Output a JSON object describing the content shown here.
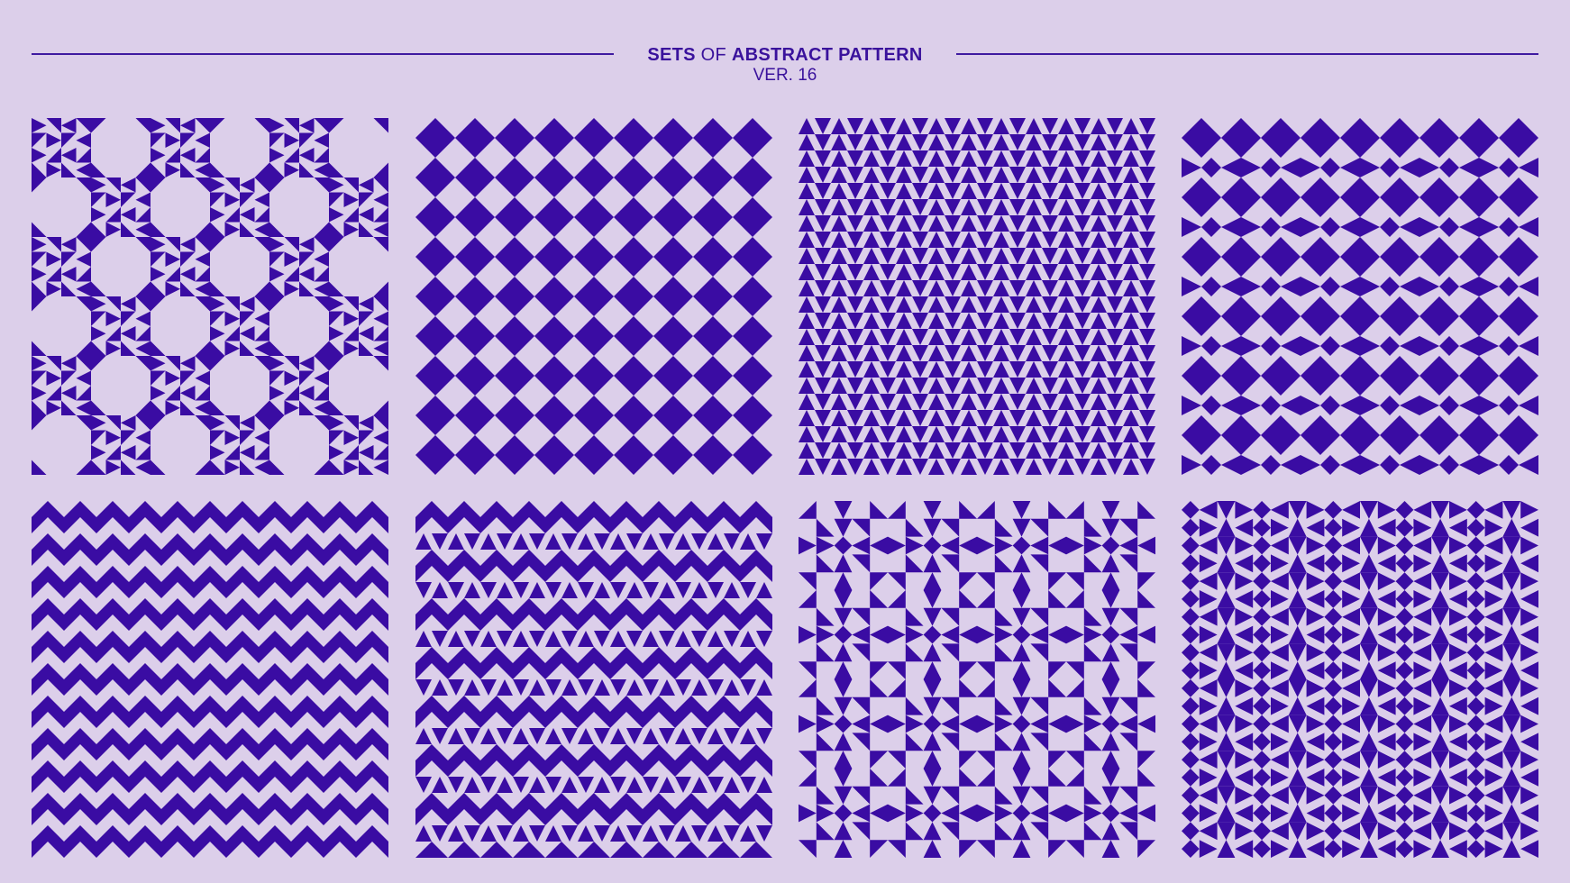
{
  "header": {
    "title_word1": "SETS",
    "title_word2": "OF",
    "title_word3": "ABSTRACT PATTERN",
    "subtitle": "VER. 16"
  },
  "colors": {
    "background": "#dccfea",
    "pattern": "#3a0ca3",
    "rule": "#3f1aa0"
  },
  "patterns": [
    {
      "name": "pattern-1",
      "motif": "bowtie-diamond-lattice"
    },
    {
      "name": "pattern-2",
      "motif": "diamond-columns"
    },
    {
      "name": "pattern-3",
      "motif": "triangle-stripes"
    },
    {
      "name": "pattern-4",
      "motif": "diamond-chain-rows"
    },
    {
      "name": "pattern-5",
      "motif": "zigzag-chevron-rows"
    },
    {
      "name": "pattern-6",
      "motif": "arrow-chevron-rows"
    },
    {
      "name": "pattern-7",
      "motif": "quilt-diamond-grid"
    },
    {
      "name": "pattern-8",
      "motif": "diamond-hourglass-columns"
    }
  ]
}
